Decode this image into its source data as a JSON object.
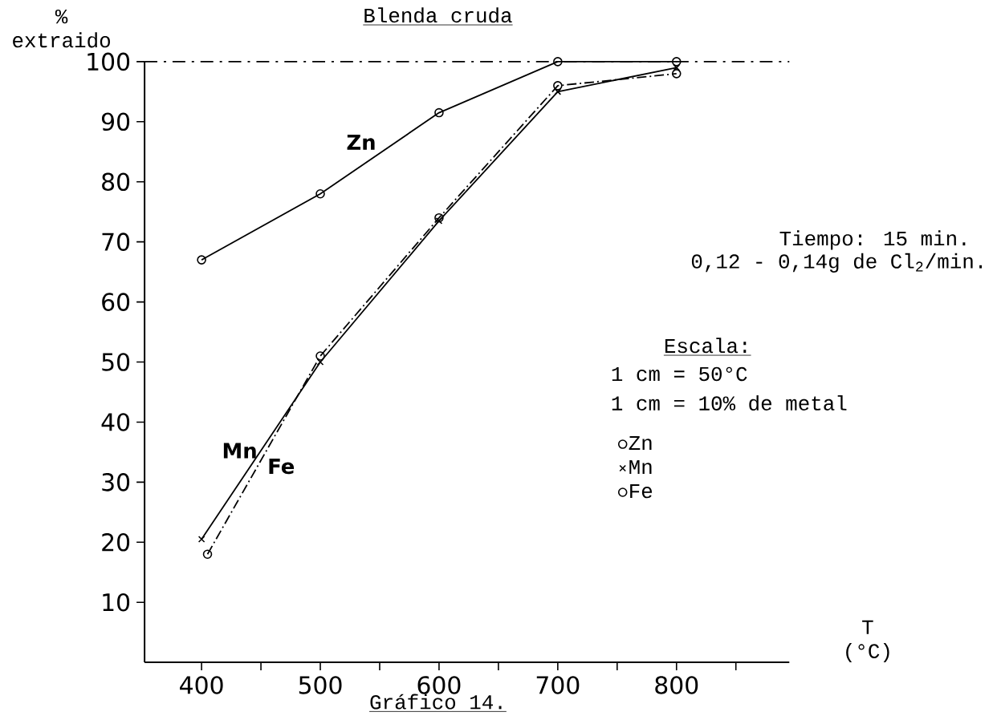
{
  "chart_data": {
    "type": "line",
    "title": "Blenda cruda",
    "ylabel": "% extraido",
    "xlabel": "T (°C)",
    "xlim": [
      352,
      895
    ],
    "ylim": [
      0,
      100
    ],
    "xticks": [
      400,
      {
        "value": 450,
        "label": null
      },
      500,
      {
        "value": 550,
        "label": null
      },
      600,
      {
        "value": 650,
        "label": null
      },
      700,
      {
        "value": 750,
        "label": null
      },
      800,
      {
        "value": 850,
        "label": null
      }
    ],
    "yticks": [
      10,
      20,
      30,
      40,
      50,
      60,
      70,
      80,
      90,
      100
    ],
    "legend": "right",
    "series": [
      {
        "name": "Zn",
        "color": "#000000",
        "marker": "circle",
        "line_style": "solid",
        "x": [
          400,
          500,
          600,
          700,
          800
        ],
        "values": [
          67,
          78,
          91.5,
          100,
          100
        ]
      },
      {
        "name": "Mn",
        "color": "#000000",
        "marker": "cross",
        "line_style": "solid",
        "x": [
          400,
          500,
          600,
          700,
          800
        ],
        "values": [
          20.5,
          50,
          73.5,
          95,
          99
        ]
      },
      {
        "name": "Fe",
        "color": "#000000",
        "marker": "circle",
        "line_style": "dashed",
        "x": [
          405,
          500,
          600,
          700,
          800
        ],
        "values": [
          18,
          51,
          74,
          96,
          98
        ]
      }
    ],
    "ref_lines": [
      {
        "axis": "y",
        "value": 100,
        "line_style": "dashed"
      }
    ],
    "annotations": [
      "Tiempo: 15 min.",
      "0,12 - 0,14g de Cl$_{2}$/min.",
      "Escala:",
      "1 cm = 50°C",
      "1 cm = 10% de metal",
      "Gráfico 14."
    ]
  }
}
